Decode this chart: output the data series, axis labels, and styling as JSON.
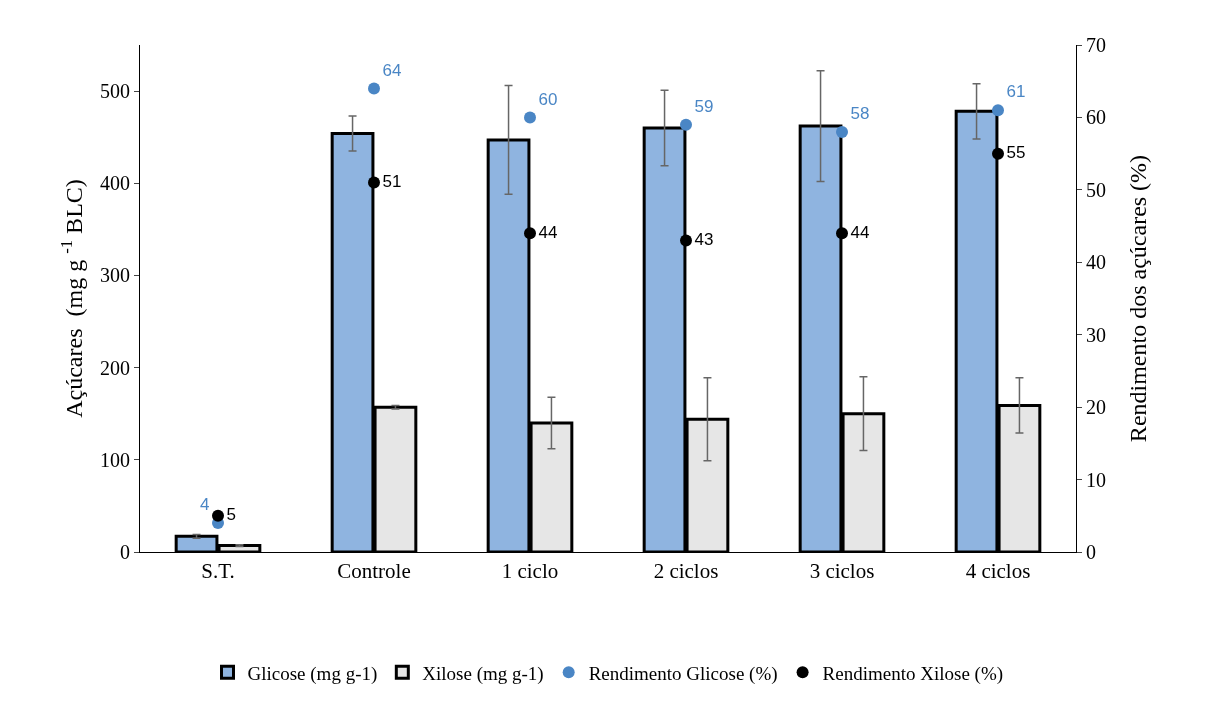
{
  "chart_data": {
    "type": "bar",
    "ylabel": "Açúcares  (mg g $^{-1}$ BLC)",
    "y2label": "Rendimento dos açúcares (%)",
    "categories": [
      "S.T.",
      "Controle",
      "1 ciclo",
      "2 ciclos",
      "3 ciclos",
      "4 ciclos"
    ],
    "series": [
      {
        "name": "Glicose (mg g-1)",
        "color": "#8fb4e0",
        "values": [
          17,
          454,
          447,
          460,
          462,
          478
        ],
        "errors": [
          2,
          19,
          59,
          41,
          60,
          30
        ]
      },
      {
        "name": "Xilose (mg g-1)",
        "color": "#e6e6e6",
        "values": [
          7,
          157,
          140,
          144,
          150,
          159
        ],
        "errors": [
          1,
          2,
          28,
          45,
          40,
          30
        ]
      },
      {
        "name": "Rendimento Glicose (%)",
        "type": "scatter",
        "axis": "y2",
        "color": "#4a86c5",
        "values": [
          4,
          64,
          60,
          59,
          58,
          61
        ],
        "value_labels": [
          "4",
          "64",
          "60",
          "59",
          "58",
          "61"
        ]
      },
      {
        "name": "Rendimento Xilose (%)",
        "type": "scatter",
        "axis": "y2",
        "color": "#000000",
        "values": [
          5,
          51,
          44,
          43,
          44,
          55
        ],
        "value_labels": [
          "5",
          "51",
          "44",
          "43",
          "44",
          "55"
        ]
      }
    ],
    "marker": "circle",
    "ylim": [
      0,
      550
    ],
    "yticks": [
      0,
      100,
      200,
      300,
      400,
      500
    ],
    "y2lim": [
      0,
      70
    ],
    "y2ticks": [
      0,
      10,
      20,
      30,
      40,
      50,
      60,
      70
    ],
    "grid": false,
    "legend": "bottom"
  }
}
